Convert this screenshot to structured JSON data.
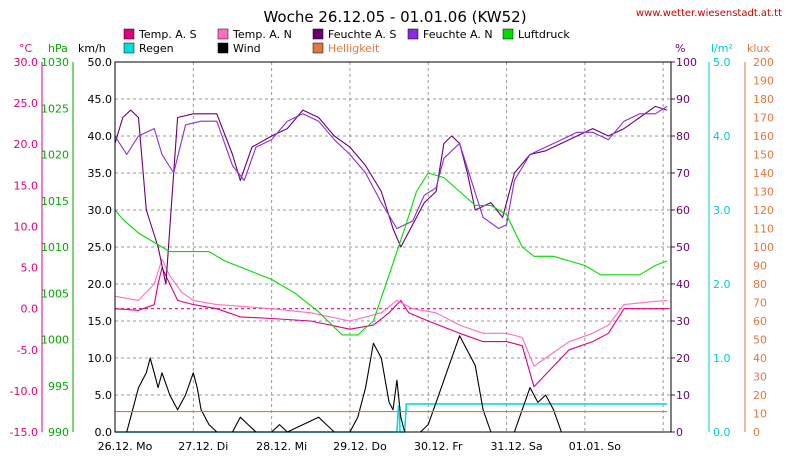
{
  "title": "Woche 26.12.05 - 01.01.06 (KW52)",
  "source_url": "www.wetter.wiesenstadt.at.tt",
  "colors": {
    "temp_s": "#e0007f",
    "temp_n": "#ff6ec0",
    "hum_s": "#6a0070",
    "hum_n": "#8a2be2",
    "pressure": "#00dd00",
    "rain": "#00e0e0",
    "wind": "#000000",
    "light": "#e07840",
    "axis_left1": "#e0007f",
    "axis_left2": "#00aa00",
    "axis_left3": "#000000",
    "axis_r1": "#6a0070",
    "axis_r2": "#00cccc",
    "axis_r3": "#e07840"
  },
  "legend": [
    {
      "label": "Temp. A. S",
      "color": "#e0007f"
    },
    {
      "label": "Temp. A. N",
      "color": "#ff6ec0"
    },
    {
      "label": "Feuchte A. S",
      "color": "#6a0070"
    },
    {
      "label": "Feuchte A. N",
      "color": "#8a2be2"
    },
    {
      "label": "Luftdruck",
      "color": "#00dd00"
    },
    {
      "label": "Regen",
      "color": "#00e0e0"
    },
    {
      "label": "Wind",
      "color": "#000000"
    },
    {
      "label": "Helligkeit",
      "color": "#e07840"
    }
  ],
  "chart_data": {
    "type": "line",
    "title": "Woche 26.12.05 - 01.01.06 (KW52)",
    "x_unit": "days",
    "xlim": [
      0,
      7.1
    ],
    "x_tick_labels": [
      "26.12. Mo",
      "27.12. Di",
      "28.12. Mi",
      "29.12. Do",
      "30.12. Fr",
      "31.12. Sa",
      "01.01. So"
    ],
    "grid": true,
    "axes": {
      "temp": {
        "label": "°C",
        "ylim": [
          -15,
          30
        ],
        "ticks": [
          "30.0",
          "25.0",
          "20.0",
          "15.0",
          "10.0",
          "5.0",
          "0.0",
          "-5.0",
          "-10.0",
          "-15.0"
        ]
      },
      "pressure": {
        "label": "hPa",
        "ylim": [
          990,
          1030
        ],
        "ticks": [
          "1030",
          "1025",
          "1020",
          "1015",
          "1010",
          "1005",
          "1000",
          "995",
          "990"
        ]
      },
      "wind": {
        "label": "km/h",
        "ylim": [
          0,
          50
        ],
        "ticks": [
          "50.0",
          "45.0",
          "40.0",
          "35.0",
          "30.0",
          "25.0",
          "20.0",
          "15.0",
          "10.0",
          "5.0",
          "0.0"
        ]
      },
      "humidity": {
        "label": "%",
        "ylim": [
          0,
          100
        ],
        "ticks": [
          "100",
          "90",
          "80",
          "70",
          "60",
          "50",
          "40",
          "30",
          "20",
          "10",
          "0"
        ]
      },
      "rain": {
        "label": "l/m²",
        "ylim": [
          0,
          5
        ],
        "ticks": [
          "5.0",
          "4.0",
          "3.0",
          "2.0",
          "1.0",
          "0.0"
        ]
      },
      "light": {
        "label": "klux",
        "ylim": [
          0,
          200
        ],
        "ticks": [
          "200",
          "190",
          "180",
          "170",
          "160",
          "150",
          "140",
          "130",
          "120",
          "110",
          "100",
          "90",
          "80",
          "70",
          "60",
          "50",
          "40",
          "30",
          "20",
          "10",
          "0"
        ]
      }
    },
    "series": [
      {
        "name": "Temp. A. S",
        "axis": "temp",
        "data": [
          [
            0,
            0
          ],
          [
            0.3,
            -0.2
          ],
          [
            0.5,
            0.5
          ],
          [
            0.55,
            3
          ],
          [
            0.6,
            5
          ],
          [
            0.7,
            3
          ],
          [
            0.8,
            1
          ],
          [
            1,
            0.5
          ],
          [
            1.3,
            0
          ],
          [
            1.6,
            -1
          ],
          [
            2,
            -1.2
          ],
          [
            2.5,
            -1.5
          ],
          [
            3,
            -2.5
          ],
          [
            3.3,
            -2
          ],
          [
            3.5,
            -0.5
          ],
          [
            3.65,
            1
          ],
          [
            3.75,
            -0.5
          ],
          [
            4,
            -1.5
          ],
          [
            4.4,
            -3
          ],
          [
            4.7,
            -4
          ],
          [
            5,
            -4
          ],
          [
            5.2,
            -4.5
          ],
          [
            5.35,
            -9.5
          ],
          [
            5.5,
            -8
          ],
          [
            5.8,
            -5
          ],
          [
            6.1,
            -4
          ],
          [
            6.3,
            -3
          ],
          [
            6.5,
            0
          ],
          [
            6.8,
            0
          ],
          [
            7.05,
            0
          ]
        ]
      },
      {
        "name": "Temp. A. N",
        "axis": "temp",
        "data": [
          [
            0,
            1.5
          ],
          [
            0.3,
            1
          ],
          [
            0.5,
            3
          ],
          [
            0.6,
            6
          ],
          [
            0.7,
            4
          ],
          [
            0.85,
            2
          ],
          [
            1,
            1
          ],
          [
            1.3,
            0.5
          ],
          [
            1.6,
            0.3
          ],
          [
            2,
            0
          ],
          [
            2.5,
            -0.5
          ],
          [
            3,
            -1.5
          ],
          [
            3.4,
            -0.5
          ],
          [
            3.6,
            1
          ],
          [
            3.8,
            0
          ],
          [
            4.1,
            -0.5
          ],
          [
            4.4,
            -2
          ],
          [
            4.7,
            -3
          ],
          [
            5,
            -3
          ],
          [
            5.2,
            -3.5
          ],
          [
            5.35,
            -7
          ],
          [
            5.5,
            -6
          ],
          [
            5.8,
            -4
          ],
          [
            6.1,
            -3
          ],
          [
            6.3,
            -2
          ],
          [
            6.5,
            0.5
          ],
          [
            6.8,
            0.8
          ],
          [
            7.05,
            1
          ]
        ]
      },
      {
        "name": "Feuchte A. S",
        "axis": "humidity",
        "data": [
          [
            0,
            78
          ],
          [
            0.1,
            85
          ],
          [
            0.2,
            87
          ],
          [
            0.3,
            85
          ],
          [
            0.4,
            60
          ],
          [
            0.55,
            50
          ],
          [
            0.65,
            40
          ],
          [
            0.8,
            85
          ],
          [
            1,
            86
          ],
          [
            1.3,
            86
          ],
          [
            1.5,
            75
          ],
          [
            1.6,
            68
          ],
          [
            1.75,
            77
          ],
          [
            2,
            80
          ],
          [
            2.2,
            82
          ],
          [
            2.4,
            87
          ],
          [
            2.6,
            85
          ],
          [
            2.8,
            80
          ],
          [
            3,
            77
          ],
          [
            3.2,
            72
          ],
          [
            3.4,
            65
          ],
          [
            3.55,
            55
          ],
          [
            3.65,
            50
          ],
          [
            3.8,
            56
          ],
          [
            3.95,
            62
          ],
          [
            4.1,
            65
          ],
          [
            4.2,
            78
          ],
          [
            4.3,
            80
          ],
          [
            4.4,
            78
          ],
          [
            4.5,
            70
          ],
          [
            4.6,
            60
          ],
          [
            4.8,
            62
          ],
          [
            4.95,
            58
          ],
          [
            5.1,
            70
          ],
          [
            5.3,
            75
          ],
          [
            5.5,
            76
          ],
          [
            5.7,
            78
          ],
          [
            5.9,
            80
          ],
          [
            6.1,
            82
          ],
          [
            6.3,
            80
          ],
          [
            6.5,
            82
          ],
          [
            6.7,
            85
          ],
          [
            6.9,
            88
          ],
          [
            7.05,
            87
          ]
        ]
      },
      {
        "name": "Feuchte A. N",
        "axis": "humidity",
        "data": [
          [
            0,
            80
          ],
          [
            0.15,
            75
          ],
          [
            0.3,
            80
          ],
          [
            0.5,
            82
          ],
          [
            0.6,
            75
          ],
          [
            0.75,
            70
          ],
          [
            0.9,
            83
          ],
          [
            1.1,
            84
          ],
          [
            1.3,
            84
          ],
          [
            1.5,
            72
          ],
          [
            1.65,
            68
          ],
          [
            1.8,
            77
          ],
          [
            2,
            79
          ],
          [
            2.2,
            84
          ],
          [
            2.4,
            86
          ],
          [
            2.6,
            84
          ],
          [
            2.8,
            79
          ],
          [
            3,
            75
          ],
          [
            3.2,
            70
          ],
          [
            3.4,
            62
          ],
          [
            3.6,
            55
          ],
          [
            3.8,
            57
          ],
          [
            3.95,
            64
          ],
          [
            4.1,
            66
          ],
          [
            4.2,
            74
          ],
          [
            4.4,
            78
          ],
          [
            4.55,
            68
          ],
          [
            4.7,
            58
          ],
          [
            4.9,
            55
          ],
          [
            5,
            56
          ],
          [
            5.1,
            68
          ],
          [
            5.3,
            75
          ],
          [
            5.5,
            77
          ],
          [
            5.7,
            79
          ],
          [
            5.9,
            81
          ],
          [
            6.1,
            81
          ],
          [
            6.3,
            79
          ],
          [
            6.5,
            84
          ],
          [
            6.7,
            86
          ],
          [
            6.9,
            86
          ],
          [
            7.05,
            88
          ]
        ]
      },
      {
        "name": "Luftdruck",
        "axis": "pressure",
        "data": [
          [
            0,
            1014
          ],
          [
            0.1,
            1013
          ],
          [
            0.3,
            1011.5
          ],
          [
            0.5,
            1010.5
          ],
          [
            0.7,
            1009.5
          ],
          [
            1,
            1009.5
          ],
          [
            1.2,
            1009.5
          ],
          [
            1.4,
            1008.5
          ],
          [
            1.7,
            1007.5
          ],
          [
            2,
            1006.5
          ],
          [
            2.3,
            1005
          ],
          [
            2.6,
            1003
          ],
          [
            2.9,
            1000.5
          ],
          [
            3.1,
            1000.5
          ],
          [
            3.3,
            1002
          ],
          [
            3.5,
            1007
          ],
          [
            3.7,
            1012
          ],
          [
            3.85,
            1016
          ],
          [
            4,
            1018
          ],
          [
            4.2,
            1017.5
          ],
          [
            4.4,
            1016
          ],
          [
            4.6,
            1014.5
          ],
          [
            4.8,
            1014.5
          ],
          [
            5,
            1013.5
          ],
          [
            5.2,
            1010
          ],
          [
            5.35,
            1009
          ],
          [
            5.6,
            1009
          ],
          [
            5.8,
            1008.5
          ],
          [
            6,
            1008
          ],
          [
            6.2,
            1007
          ],
          [
            6.5,
            1007
          ],
          [
            6.7,
            1007
          ],
          [
            6.9,
            1008
          ],
          [
            7.05,
            1008.5
          ]
        ]
      },
      {
        "name": "Regen",
        "axis": "rain",
        "data": [
          [
            0,
            0
          ],
          [
            3.6,
            0
          ],
          [
            3.62,
            0.35
          ],
          [
            3.63,
            0.35
          ],
          [
            3.64,
            0
          ],
          [
            3.7,
            0
          ],
          [
            3.72,
            0.38
          ],
          [
            7.05,
            0.38
          ]
        ]
      },
      {
        "name": "Wind",
        "axis": "wind",
        "data": [
          [
            0,
            0
          ],
          [
            0.15,
            0
          ],
          [
            0.2,
            2
          ],
          [
            0.3,
            6
          ],
          [
            0.4,
            8
          ],
          [
            0.45,
            10
          ],
          [
            0.5,
            8
          ],
          [
            0.55,
            6
          ],
          [
            0.6,
            8
          ],
          [
            0.7,
            5
          ],
          [
            0.8,
            3
          ],
          [
            0.9,
            5
          ],
          [
            1,
            8
          ],
          [
            1.05,
            6
          ],
          [
            1.1,
            3
          ],
          [
            1.2,
            1
          ],
          [
            1.3,
            0
          ],
          [
            1.5,
            0
          ],
          [
            1.6,
            2
          ],
          [
            1.7,
            1
          ],
          [
            1.8,
            0
          ],
          [
            2,
            0
          ],
          [
            2.1,
            1
          ],
          [
            2.2,
            0
          ],
          [
            2.6,
            2
          ],
          [
            2.7,
            1
          ],
          [
            2.8,
            0
          ],
          [
            3,
            0
          ],
          [
            3.1,
            2
          ],
          [
            3.2,
            6
          ],
          [
            3.3,
            12
          ],
          [
            3.4,
            10
          ],
          [
            3.5,
            4
          ],
          [
            3.55,
            3
          ],
          [
            3.6,
            7
          ],
          [
            3.65,
            2
          ],
          [
            3.7,
            0
          ],
          [
            3.9,
            0
          ],
          [
            4,
            1
          ],
          [
            4.1,
            4
          ],
          [
            4.2,
            7
          ],
          [
            4.3,
            10
          ],
          [
            4.4,
            13
          ],
          [
            4.5,
            11
          ],
          [
            4.6,
            9
          ],
          [
            4.7,
            3
          ],
          [
            4.8,
            0
          ],
          [
            5.1,
            0
          ],
          [
            5.2,
            3
          ],
          [
            5.3,
            6
          ],
          [
            5.4,
            4
          ],
          [
            5.5,
            5
          ],
          [
            5.6,
            3
          ],
          [
            5.7,
            0
          ],
          [
            7.05,
            0
          ]
        ]
      },
      {
        "name": "Helligkeit",
        "axis": "light",
        "data": [
          [
            0,
            11
          ],
          [
            7.05,
            11
          ]
        ]
      }
    ]
  }
}
